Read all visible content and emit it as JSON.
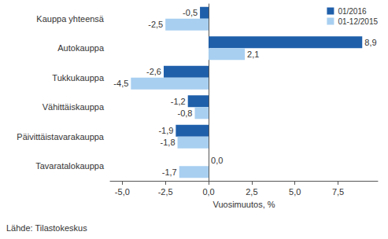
{
  "chart_data": {
    "type": "bar",
    "orientation": "horizontal",
    "categories": [
      "Kauppa yhteensä",
      "Autokauppa",
      "Tukkukauppa",
      "Vähittäiskauppa",
      "Päivittäistavarakauppa",
      "Tavaratalokauppa"
    ],
    "series": [
      {
        "name": "01/2016",
        "color": "#1f5faa",
        "values": [
          -0.5,
          8.9,
          -2.6,
          -1.2,
          -1.9,
          0.0
        ],
        "value_labels": [
          "-0,5",
          "8,9",
          "-2,6",
          "-1,2",
          "-1,9",
          "0,0"
        ]
      },
      {
        "name": "01-12/2015",
        "color": "#a8cff0",
        "values": [
          -2.5,
          2.1,
          -4.5,
          -0.8,
          -1.8,
          -1.7
        ],
        "value_labels": [
          "-2,5",
          "2,1",
          "-4,5",
          "-0,8",
          "-1,8",
          "-1,7"
        ]
      }
    ],
    "x_label": "Vuosimuutos, %",
    "annotation": "Lähde: Tilastokeskus",
    "xlim": [
      -5.7,
      9.8
    ],
    "xticks": [
      {
        "value": -5,
        "label": "-5,0"
      },
      {
        "value": -2.5,
        "label": "-2,5"
      },
      {
        "value": 0,
        "label": "0,0"
      },
      {
        "value": 2.5,
        "label": "2,5"
      },
      {
        "value": 5,
        "label": "5,0"
      },
      {
        "value": 7.5,
        "label": "7,5"
      }
    ],
    "grid": false,
    "legend": "top-right",
    "data_labels": true
  }
}
